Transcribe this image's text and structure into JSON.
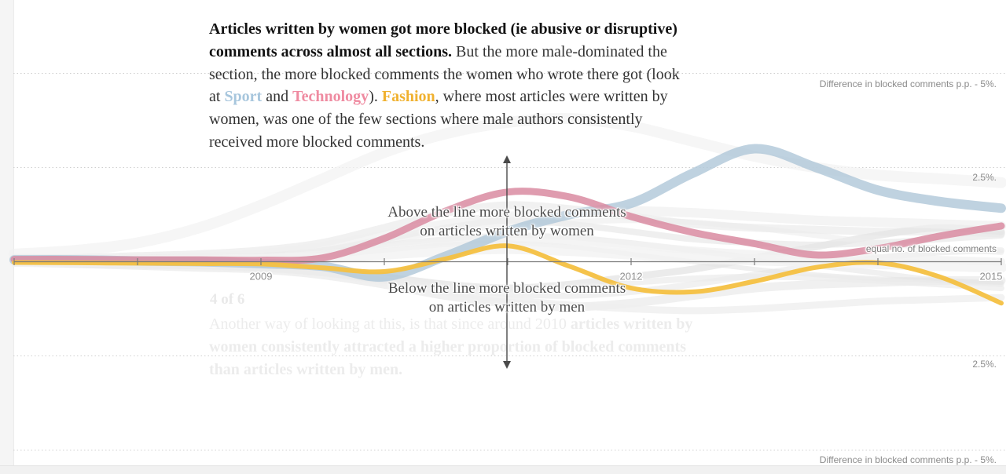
{
  "intro": {
    "lead_bold": "Articles written by women got more blocked (ie abusive or disruptive) comments across almost all sections.",
    "seg_after_lead": " But the more male-dominated the section, the more blocked comments the women who wrote there got (look at ",
    "word_sport": "Sport",
    "seg_and": " and ",
    "word_technology": "Technology",
    "seg_paren": "). ",
    "word_fashion": "Fashion",
    "seg_rest": ", where most articles were written by women, was one of the few sections where male authors consistently received more blocked comments."
  },
  "annotations": {
    "above_line_1": "Above the line more blocked comments",
    "above_line_2": "on articles written by women",
    "below_line_1": "Below the line more blocked comments",
    "below_line_2": "on articles written by men"
  },
  "side_labels": {
    "top": "Difference in blocked comments p.p. - 5%.",
    "upper_pct": "2.5%.",
    "equal": "equal no. of blocked comments",
    "lower_pct": "2.5%.",
    "bottom": "Difference in blocked comments p.p. - 5%."
  },
  "ghost": {
    "counter": "4 of 6",
    "lead": "Another way of looking at this, is that since around 2010 ",
    "emphasis": "articles written by women consistently attracted a higher proportion of blocked comments than articles written by men."
  },
  "colors": {
    "sport": "#a7c6dd",
    "technology": "#ef8ba1",
    "fashion": "#f0b12f",
    "axis": "#7b7b7b",
    "gridline": "#cfcfcf",
    "label_gray": "#8a8a8a"
  },
  "chart_data": {
    "type": "line",
    "x": [
      2007,
      2007.5,
      2008,
      2008.5,
      2009,
      2009.5,
      2010,
      2010.5,
      2011,
      2011.5,
      2012,
      2012.5,
      2013,
      2013.5,
      2014,
      2014.5,
      2015
    ],
    "x_axis": {
      "tick_years": [
        2007,
        2008,
        2009,
        2010,
        2011,
        2012,
        2013,
        2014,
        2015
      ],
      "labeled_years": [
        "2009",
        "2012",
        "2015"
      ]
    },
    "y_axis": {
      "unit": "percentage points difference in blocked comments",
      "gridlines_pp": [
        5,
        2.5,
        -2.5,
        -5
      ],
      "baseline_label": "equal no. of blocked comments",
      "above_meaning": "more blocked comments on articles written by women",
      "below_meaning": "more blocked comments on articles written by men"
    },
    "series": [
      {
        "name": "Sport",
        "color": "#afc7d8",
        "stroke_width": 12,
        "opacity": 0.8,
        "values": [
          0.05,
          0.05,
          0.02,
          0,
          -0.05,
          -0.12,
          -0.4,
          0.15,
          0.8,
          1.25,
          1.55,
          2.35,
          3,
          2.5,
          1.9,
          1.6,
          1.42
        ]
      },
      {
        "name": "Technology",
        "color": "#d98ba1",
        "stroke_width": 9,
        "opacity": 0.85,
        "values": [
          0.06,
          0.06,
          0.05,
          0.05,
          0.04,
          0.1,
          0.62,
          1.35,
          1.85,
          1.72,
          1.2,
          0.78,
          0.48,
          0.18,
          0.35,
          0.68,
          0.95
        ]
      },
      {
        "name": "Fashion",
        "color": "#f4c041",
        "stroke_width": 6,
        "opacity": 0.95,
        "values": [
          -0.02,
          -0.03,
          -0.04,
          -0.05,
          -0.06,
          -0.16,
          -0.26,
          0.08,
          0.42,
          -0.12,
          -0.7,
          -0.8,
          -0.52,
          -0.15,
          -0.03,
          -0.4,
          -1.1
        ]
      }
    ],
    "background_series": [
      {
        "color": "#f2f2f2",
        "stroke_width": 14,
        "opacity": 0.7,
        "values": [
          0.2,
          0.3,
          0.5,
          0.9,
          1.5,
          2.2,
          2.9,
          3.4,
          3.7,
          3.8,
          3.6,
          3.2,
          2.8,
          2.5,
          2.3,
          2.2,
          2.1
        ]
      },
      {
        "color": "#ededed",
        "stroke_width": 10,
        "opacity": 0.8,
        "values": [
          0.1,
          0.1,
          0.15,
          0.2,
          0.3,
          0.5,
          0.9,
          1.3,
          1.5,
          1.4,
          1.2,
          1.0,
          0.9,
          0.85,
          0.8,
          0.8,
          0.75
        ]
      },
      {
        "color": "#e8e8e8",
        "stroke_width": 8,
        "opacity": 0.7,
        "values": [
          0.05,
          0.05,
          0.1,
          0.1,
          0.15,
          0.3,
          0.6,
          0.9,
          1.1,
          1.0,
          0.8,
          0.6,
          0.5,
          0.45,
          0.5,
          0.6,
          0.7
        ]
      },
      {
        "color": "#e6e6e6",
        "stroke_width": 9,
        "opacity": 0.8,
        "values": [
          0,
          0,
          -0.05,
          -0.1,
          -0.1,
          -0.2,
          -0.4,
          -0.6,
          -0.7,
          -0.6,
          -0.4,
          -0.2,
          0.1,
          0.4,
          0.7,
          0.9,
          0.8
        ]
      },
      {
        "color": "#ececec",
        "stroke_width": 11,
        "opacity": 0.8,
        "values": [
          0,
          -0.05,
          -0.1,
          -0.15,
          -0.2,
          -0.35,
          -0.6,
          -0.9,
          -1.1,
          -1.2,
          -1.1,
          -0.9,
          -0.7,
          -0.6,
          -0.55,
          -0.5,
          -0.5
        ]
      },
      {
        "color": "#e9e9e9",
        "stroke_width": 7,
        "opacity": 0.7,
        "values": [
          0.05,
          0.08,
          0.1,
          0.12,
          0.15,
          0.25,
          0.45,
          0.6,
          0.7,
          0.65,
          0.5,
          0.3,
          0.1,
          -0.1,
          -0.3,
          -0.5,
          -0.6
        ]
      },
      {
        "color": "#eeeeee",
        "stroke_width": 8,
        "opacity": 0.8,
        "values": [
          -0.02,
          -0.05,
          -0.08,
          -0.1,
          -0.15,
          -0.25,
          -0.45,
          -0.7,
          -0.85,
          -0.9,
          -0.8,
          -0.6,
          -0.35,
          -0.1,
          0.1,
          0.25,
          0.3
        ]
      },
      {
        "color": "#f0f0f0",
        "stroke_width": 12,
        "opacity": 0.7,
        "values": [
          0.02,
          0.04,
          0.06,
          0.1,
          0.2,
          0.4,
          0.7,
          1.0,
          1.2,
          1.3,
          1.35,
          1.3,
          1.2,
          1.1,
          1.05,
          1.0,
          0.95
        ]
      },
      {
        "color": "#e5e5e5",
        "stroke_width": 6,
        "opacity": 0.6,
        "values": [
          0,
          0,
          0.02,
          0.05,
          0.08,
          0.15,
          0.3,
          0.45,
          0.5,
          0.4,
          0.2,
          0,
          -0.2,
          -0.35,
          -0.45,
          -0.5,
          -0.55
        ]
      },
      {
        "color": "#efefef",
        "stroke_width": 9,
        "opacity": 0.8,
        "values": [
          -0.01,
          -0.02,
          -0.04,
          -0.08,
          -0.15,
          -0.3,
          -0.55,
          -0.8,
          -1.0,
          -1.15,
          -1.25,
          -1.3,
          -1.25,
          -1.15,
          -1.05,
          -1.0,
          -0.95
        ]
      },
      {
        "color": "#ececec",
        "stroke_width": 7,
        "opacity": 0.6,
        "values": [
          0.03,
          0.05,
          0.08,
          0.1,
          0.15,
          0.3,
          0.55,
          0.8,
          0.95,
          1.05,
          1.1,
          1.05,
          0.9,
          0.7,
          0.5,
          0.35,
          0.25
        ]
      },
      {
        "color": "#f1f1f1",
        "stroke_width": 10,
        "opacity": 0.8,
        "values": [
          0,
          0.02,
          0.03,
          0.05,
          0.1,
          0.2,
          0.35,
          0.5,
          0.6,
          0.55,
          0.45,
          0.3,
          0.2,
          0.15,
          0.1,
          0.05,
          0
        ]
      },
      {
        "color": "#ebebeb",
        "stroke_width": 8,
        "opacity": 0.7,
        "values": [
          -0.05,
          -0.08,
          -0.1,
          -0.12,
          -0.18,
          -0.3,
          -0.5,
          -0.65,
          -0.7,
          -0.65,
          -0.55,
          -0.45,
          -0.4,
          -0.42,
          -0.5,
          -0.6,
          -0.7
        ]
      },
      {
        "color": "#f3f3f3",
        "stroke_width": 14,
        "opacity": 0.8,
        "values": [
          0.01,
          0.02,
          0.03,
          0.04,
          0.06,
          0.1,
          0.2,
          0.3,
          0.35,
          0.3,
          0.2,
          0.1,
          0.05,
          0,
          -0.05,
          -0.1,
          -0.15
        ]
      }
    ]
  }
}
